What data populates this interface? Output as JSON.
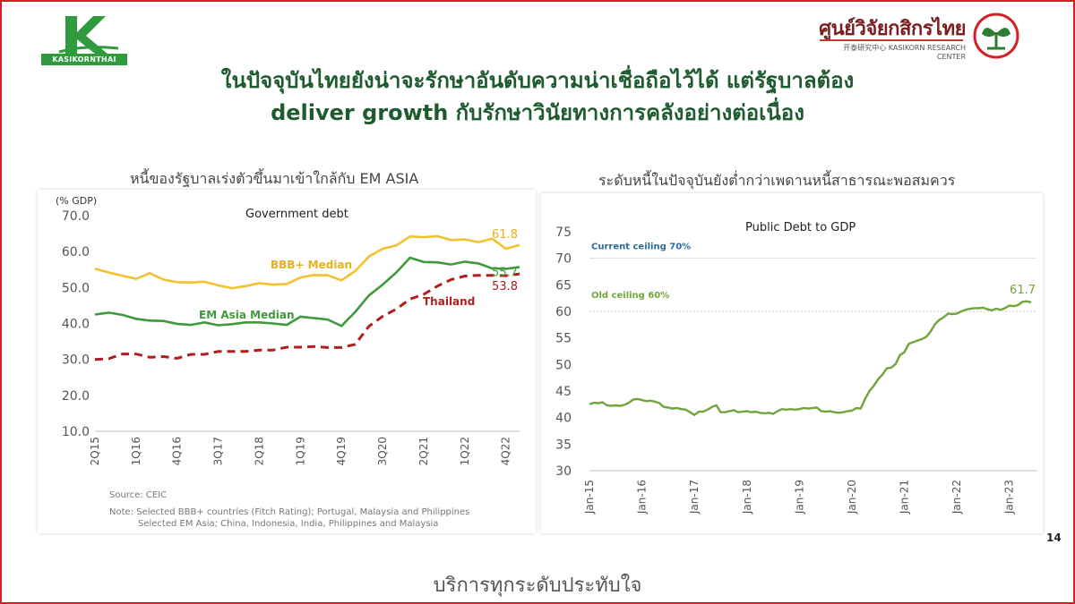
{
  "header": {
    "left_logo_text": "KASIKORNTHAI",
    "krc_thai": "ศูนย์วิจัยกสิกรไทย",
    "krc_en": "开泰研究中心  KASIKORN RESEARCH CENTER",
    "headline_line1": "ในปัจจุบันไทยยังน่าจะรักษาอันดับความน่าเชื่อถือไว้ได้ แต่รัฐบาลต้อง",
    "headline_line2": "deliver growth กับรักษาวินัยทางการคลังอย่างต่อเนื่อง"
  },
  "colors": {
    "brand_green": "#1e5b2e",
    "frame_red": "#d51e26",
    "yellow": "#f2c12e",
    "green": "#3f9a3c",
    "darkred": "#b01d1d",
    "lightgreen": "#6fa53a"
  },
  "left_panel": {
    "title": "หนี้ของรัฐบาลเร่งตัวขึ้นมาเข้าใกล้กับ EM ASIA",
    "source": "Source: CEIC",
    "note1": "Note: Selected BBB+ countries (Fitch Rating); Portugal, Malaysia and Philippines",
    "note2": "Selected EM Asia; China, Indonesia, India, Philippines and Malaysia"
  },
  "right_panel": {
    "title": "ระดับหนี้ในปัจจุบันยังต่ำกว่าเพดานหนี้สาธารณะพอสมควร"
  },
  "page_number": "14",
  "footer": "บริการทุกระดับประทับใจ",
  "chart_data": [
    {
      "type": "line",
      "title": "Government debt",
      "ylabel": "(% GDP)",
      "ylim": [
        10,
        70
      ],
      "yticks": [
        "10.0",
        "20.0",
        "30.0",
        "40.0",
        "50.0",
        "60.0",
        "70.0"
      ],
      "x": [
        "2Q15",
        "3Q15",
        "4Q15",
        "1Q16",
        "2Q16",
        "3Q16",
        "4Q16",
        "1Q17",
        "2Q17",
        "3Q17",
        "4Q17",
        "1Q18",
        "2Q18",
        "3Q18",
        "4Q18",
        "1Q19",
        "2Q19",
        "3Q19",
        "4Q19",
        "1Q20",
        "2Q20",
        "3Q20",
        "4Q20",
        "1Q21",
        "2Q21",
        "3Q21",
        "4Q21",
        "1Q22",
        "2Q22",
        "3Q22",
        "4Q22",
        "1Q23"
      ],
      "xtick_labels": [
        "2Q15",
        "1Q16",
        "4Q16",
        "3Q17",
        "2Q18",
        "1Q19",
        "4Q19",
        "3Q20",
        "2Q21",
        "1Q22",
        "4Q22"
      ],
      "series": [
        {
          "name": "BBB+ Median",
          "color": "#f2c12e",
          "dash": false,
          "end_label": "61.8",
          "values": [
            55.2,
            54.2,
            53.3,
            52.4,
            54.0,
            52.2,
            51.5,
            51.4,
            51.6,
            50.6,
            49.8,
            50.4,
            51.2,
            50.8,
            51.0,
            52.8,
            53.5,
            53.4,
            52.0,
            54.6,
            58.6,
            60.8,
            61.7,
            64.2,
            64.0,
            64.3,
            63.2,
            63.4,
            62.6,
            63.6,
            60.8,
            61.8
          ]
        },
        {
          "name": "EM Asia Median",
          "color": "#3f9a3c",
          "dash": false,
          "end_label": "55.7",
          "values": [
            42.5,
            43.0,
            42.4,
            41.3,
            40.8,
            40.7,
            39.9,
            39.6,
            40.3,
            39.5,
            39.8,
            40.3,
            40.3,
            40.0,
            39.6,
            41.9,
            41.5,
            41.1,
            39.3,
            43.2,
            47.8,
            50.8,
            54.2,
            58.3,
            57.1,
            57.0,
            56.4,
            57.2,
            56.7,
            55.3,
            55.2,
            55.7
          ]
        },
        {
          "name": "Thailand",
          "color": "#b01d1d",
          "dash": true,
          "end_label": "53.8",
          "values": [
            30.0,
            30.2,
            31.5,
            31.5,
            30.6,
            30.8,
            30.3,
            31.4,
            31.4,
            32.2,
            32.2,
            32.2,
            32.6,
            32.6,
            33.4,
            33.4,
            33.6,
            33.3,
            33.3,
            34.2,
            39.2,
            42.0,
            44.0,
            46.8,
            48.1,
            50.4,
            52.2,
            53.2,
            53.4,
            53.4,
            53.3,
            53.8
          ]
        }
      ]
    },
    {
      "type": "line",
      "title": "Public Debt to GDP",
      "ylim": [
        30,
        75
      ],
      "yticks": [
        "30",
        "35",
        "40",
        "45",
        "50",
        "55",
        "60",
        "65",
        "70",
        "75"
      ],
      "xtick_labels": [
        "Jan-15",
        "Jan-16",
        "Jan-17",
        "Jan-18",
        "Jan-19",
        "Jan-20",
        "Jan-21",
        "Jan-22",
        "Jan-23"
      ],
      "x_start": "Jan-15",
      "x_step": "month",
      "annotations": [
        {
          "text": "Current ceiling 70%",
          "y": 70,
          "color": "#2b6a9e"
        },
        {
          "text": "Old ceiling 60%",
          "y": 60,
          "color": "#6fa53a"
        }
      ],
      "series": [
        {
          "name": "Public Debt to GDP",
          "color": "#6fa53a",
          "end_label": "61.7",
          "values": [
            42.5,
            42.8,
            42.7,
            42.9,
            42.3,
            42.2,
            42.3,
            42.2,
            42.4,
            42.8,
            43.4,
            43.5,
            43.3,
            43.1,
            43.2,
            43.0,
            42.7,
            42.0,
            41.9,
            41.7,
            41.8,
            41.6,
            41.5,
            41.0,
            40.5,
            41.1,
            41.1,
            41.5,
            42.0,
            42.3,
            41.0,
            41.0,
            41.2,
            41.4,
            41.0,
            41.1,
            41.2,
            41.0,
            41.1,
            40.9,
            40.8,
            40.9,
            40.7,
            41.2,
            41.6,
            41.5,
            41.6,
            41.5,
            41.6,
            41.8,
            41.7,
            41.8,
            41.9,
            41.2,
            41.1,
            41.2,
            41.0,
            40.9,
            41.0,
            41.2,
            41.3,
            41.8,
            41.7,
            43.5,
            45.0,
            46.0,
            47.2,
            48.1,
            49.3,
            49.4,
            50.1,
            51.8,
            52.3,
            53.9,
            54.2,
            54.5,
            54.8,
            55.2,
            56.2,
            57.6,
            58.4,
            58.9,
            59.6,
            59.5,
            59.6,
            60.0,
            60.3,
            60.5,
            60.6,
            60.6,
            60.7,
            60.4,
            60.2,
            60.5,
            60.3,
            60.6,
            61.1,
            61.0,
            61.2,
            61.8,
            61.9,
            61.7
          ]
        }
      ]
    }
  ]
}
